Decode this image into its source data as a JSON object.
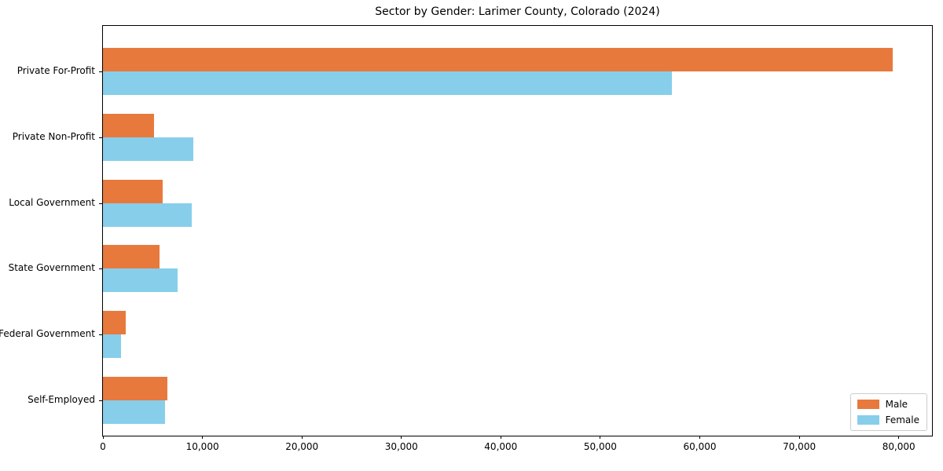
{
  "title": "Sector by Gender: Larimer County, Colorado (2024)",
  "chart_data": {
    "type": "bar",
    "orientation": "horizontal",
    "title": "Sector by Gender: Larimer County, Colorado (2024)",
    "categories": [
      "Private For-Profit",
      "Private Non-Profit",
      "Local Government",
      "State Government",
      "Federal Government",
      "Self-Employed"
    ],
    "series": [
      {
        "name": "Male",
        "color": "#e8793d",
        "values": [
          79400,
          5100,
          6000,
          5700,
          2300,
          6500
        ]
      },
      {
        "name": "Female",
        "color": "#87ceeb",
        "values": [
          57200,
          9100,
          8900,
          7500,
          1800,
          6200
        ]
      }
    ],
    "xlabel": "",
    "ylabel": "",
    "xlim": [
      0,
      83500
    ],
    "xticks": [
      0,
      10000,
      20000,
      30000,
      40000,
      50000,
      60000,
      70000,
      80000
    ],
    "xtick_format": "comma",
    "grid": false,
    "legend_position": "lower right",
    "spine_color": "#000000",
    "background_color": "#ffffff"
  }
}
